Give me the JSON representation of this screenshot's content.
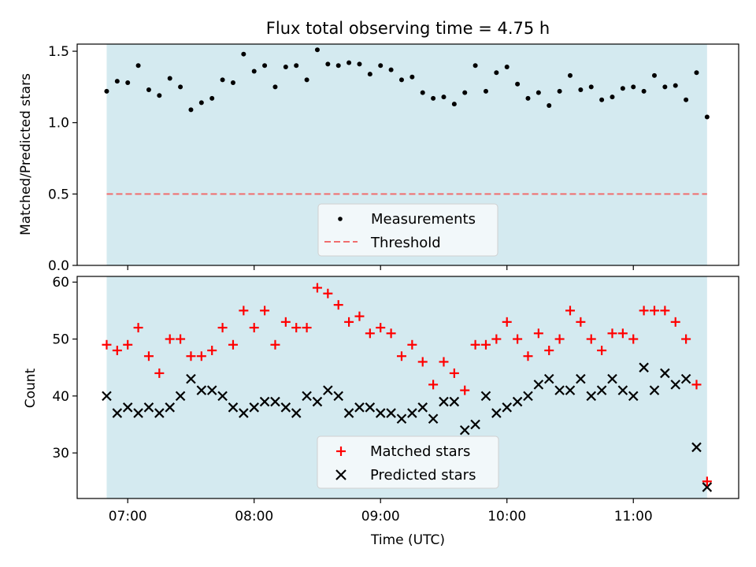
{
  "title": "Flux total observing time = 4.75 h",
  "colors": {
    "shade": "#d4eaf0",
    "matched": "#ff0000",
    "predicted": "#000000",
    "measurement": "#000000",
    "threshold": "#f06e6e"
  },
  "chart_data": [
    {
      "type": "scatter",
      "ylabel": "Matched/Predicted stars",
      "ylim": [
        0,
        1.55
      ],
      "yticks": [
        0.0,
        0.5,
        1.0,
        1.5
      ],
      "ytick_labels": [
        "0.0",
        "0.5",
        "1.0",
        "1.5"
      ],
      "xlim": [
        "06:36",
        "11:50"
      ],
      "shaded_span": [
        "06:50",
        "11:35"
      ],
      "threshold": 0.5,
      "legend_position": "lower center",
      "legend": [
        {
          "label": "Measurements",
          "marker": "dot"
        },
        {
          "label": "Threshold",
          "marker": "dashed-line"
        }
      ],
      "x": [
        "06:50",
        "06:55",
        "07:00",
        "07:05",
        "07:10",
        "07:15",
        "07:20",
        "07:25",
        "07:30",
        "07:35",
        "07:40",
        "07:45",
        "07:50",
        "07:55",
        "08:00",
        "08:05",
        "08:10",
        "08:15",
        "08:20",
        "08:25",
        "08:30",
        "08:35",
        "08:40",
        "08:45",
        "08:50",
        "08:55",
        "09:00",
        "09:05",
        "09:10",
        "09:15",
        "09:20",
        "09:25",
        "09:30",
        "09:35",
        "09:40",
        "09:45",
        "09:50",
        "09:55",
        "10:00",
        "10:05",
        "10:10",
        "10:15",
        "10:20",
        "10:25",
        "10:30",
        "10:35",
        "10:40",
        "10:45",
        "10:50",
        "10:55",
        "11:00",
        "11:05",
        "11:10",
        "11:15",
        "11:20",
        "11:25",
        "11:30",
        "11:35"
      ],
      "values": [
        1.22,
        1.29,
        1.28,
        1.4,
        1.23,
        1.19,
        1.31,
        1.25,
        1.09,
        1.14,
        1.17,
        1.3,
        1.28,
        1.48,
        1.36,
        1.4,
        1.25,
        1.39,
        1.4,
        1.3,
        1.51,
        1.41,
        1.4,
        1.42,
        1.41,
        1.34,
        1.4,
        1.37,
        1.3,
        1.32,
        1.21,
        1.17,
        1.18,
        1.13,
        1.21,
        1.4,
        1.22,
        1.35,
        1.39,
        1.27,
        1.17,
        1.21,
        1.12,
        1.22,
        1.33,
        1.23,
        1.25,
        1.16,
        1.18,
        1.24,
        1.25,
        1.22,
        1.33,
        1.25,
        1.26,
        1.16,
        1.35,
        1.04
      ]
    },
    {
      "type": "scatter",
      "xlabel": "Time (UTC)",
      "ylabel": "Count",
      "ylim": [
        22,
        61
      ],
      "yticks": [
        30,
        40,
        50,
        60
      ],
      "ytick_labels": [
        "30",
        "40",
        "50",
        "60"
      ],
      "xlim": [
        "06:36",
        "11:50"
      ],
      "xticks": [
        "07:00",
        "08:00",
        "09:00",
        "10:00",
        "11:00"
      ],
      "shaded_span": [
        "06:50",
        "11:35"
      ],
      "legend_position": "lower center",
      "x": [
        "06:50",
        "06:55",
        "07:00",
        "07:05",
        "07:10",
        "07:15",
        "07:20",
        "07:25",
        "07:30",
        "07:35",
        "07:40",
        "07:45",
        "07:50",
        "07:55",
        "08:00",
        "08:05",
        "08:10",
        "08:15",
        "08:20",
        "08:25",
        "08:30",
        "08:35",
        "08:40",
        "08:45",
        "08:50",
        "08:55",
        "09:00",
        "09:05",
        "09:10",
        "09:15",
        "09:20",
        "09:25",
        "09:30",
        "09:35",
        "09:40",
        "09:45",
        "09:50",
        "09:55",
        "10:00",
        "10:05",
        "10:10",
        "10:15",
        "10:20",
        "10:25",
        "10:30",
        "10:35",
        "10:40",
        "10:45",
        "10:50",
        "10:55",
        "11:00",
        "11:05",
        "11:10",
        "11:15",
        "11:20",
        "11:25",
        "11:30",
        "11:35"
      ],
      "series": [
        {
          "name": "Matched stars",
          "marker": "plus",
          "values": [
            49,
            48,
            49,
            52,
            47,
            44,
            50,
            50,
            47,
            47,
            48,
            52,
            49,
            55,
            52,
            55,
            49,
            53,
            52,
            52,
            59,
            58,
            56,
            53,
            54,
            51,
            52,
            51,
            47,
            49,
            46,
            42,
            46,
            44,
            41,
            49,
            49,
            50,
            53,
            50,
            47,
            51,
            48,
            50,
            55,
            53,
            50,
            48,
            51,
            51,
            50,
            55,
            55,
            55,
            53,
            50,
            42,
            25
          ]
        },
        {
          "name": "Predicted stars",
          "marker": "x",
          "values": [
            40,
            37,
            38,
            37,
            38,
            37,
            38,
            40,
            43,
            41,
            41,
            40,
            38,
            37,
            38,
            39,
            39,
            38,
            37,
            40,
            39,
            41,
            40,
            37,
            38,
            38,
            37,
            37,
            36,
            37,
            38,
            36,
            39,
            39,
            34,
            35,
            40,
            37,
            38,
            39,
            40,
            42,
            43,
            41,
            41,
            43,
            40,
            41,
            43,
            41,
            40,
            45,
            41,
            44,
            42,
            43,
            31,
            24
          ]
        }
      ]
    }
  ]
}
